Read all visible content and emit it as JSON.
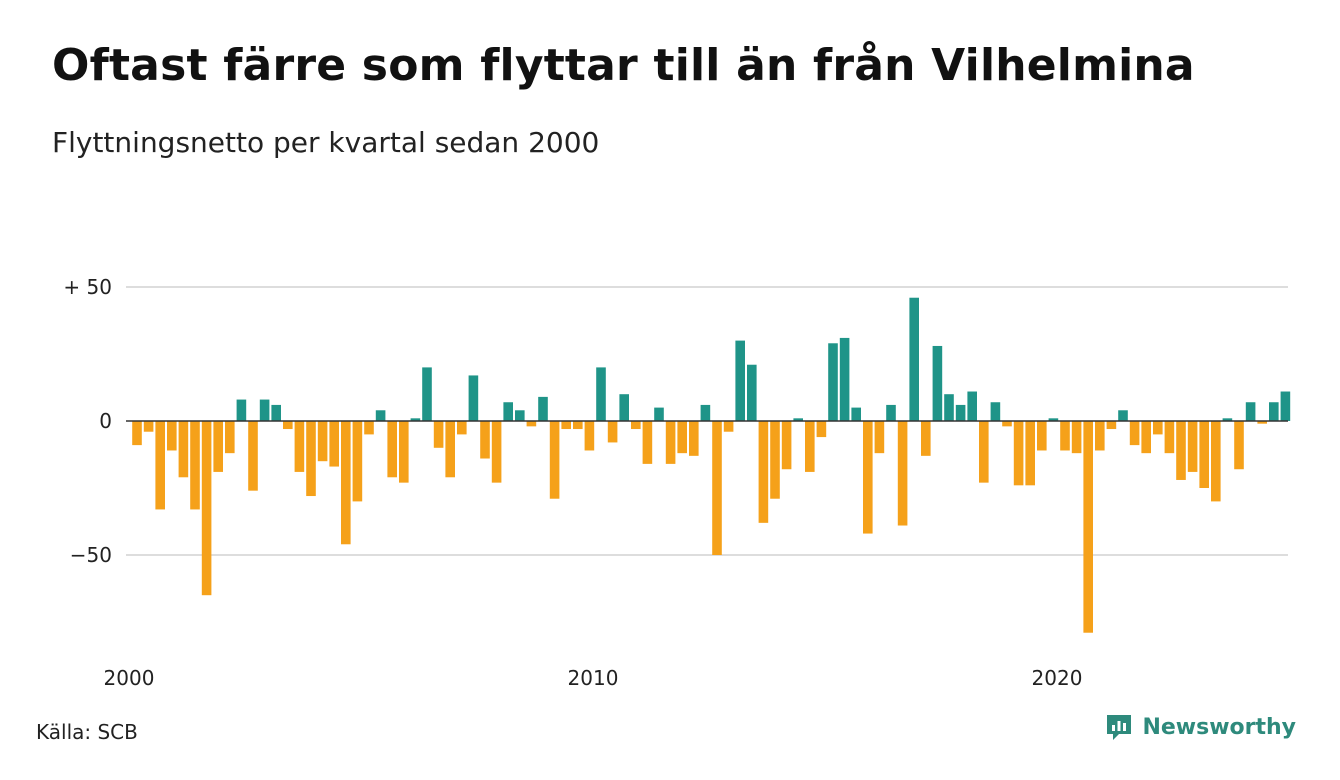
{
  "title": "Oftast färre som flyttar till än från Vilhelmina",
  "subtitle": "Flyttningsnetto per kvartal sedan 2000",
  "source": "Källa: SCB",
  "brand": "Newsworthy",
  "colors": {
    "positive": "#1f9488",
    "negative": "#f5a11a",
    "grid": "#dddddd",
    "zero": "#333333",
    "brand": "#2e8a7c"
  },
  "chart_data": {
    "type": "bar",
    "x_start": "2000-Q1",
    "x_step": "quarter",
    "ylim": [
      -80,
      50
    ],
    "yticks": [
      50,
      0,
      -50
    ],
    "ytick_labels": [
      "+ 50",
      "0",
      "−50"
    ],
    "xticks": [
      {
        "index": 0,
        "label": "2000"
      },
      {
        "index": 40,
        "label": "2010"
      },
      {
        "index": 80,
        "label": "2020"
      }
    ],
    "values": [
      -9,
      -4,
      -33,
      -11,
      -21,
      -33,
      -65,
      -19,
      -12,
      8,
      -26,
      8,
      6,
      -3,
      -19,
      -28,
      -15,
      -17,
      -46,
      -30,
      -5,
      4,
      -21,
      -23,
      1,
      20,
      -10,
      -21,
      -5,
      17,
      -14,
      -23,
      7,
      4,
      -2,
      9,
      -29,
      -3,
      -3,
      -11,
      20,
      -8,
      10,
      -3,
      -16,
      5,
      -16,
      -12,
      -13,
      6,
      -50,
      -4,
      30,
      21,
      -38,
      -29,
      -18,
      1,
      -19,
      -6,
      29,
      31,
      5,
      -42,
      -12,
      6,
      -39,
      46,
      -13,
      28,
      10,
      6,
      11,
      -23,
      7,
      -2,
      -24,
      -24,
      -11,
      1,
      -11,
      -12,
      -79,
      -11,
      -3,
      4,
      -9,
      -12,
      -5,
      -12,
      -22,
      -19,
      -25,
      -30,
      1,
      -18,
      7,
      -1,
      7,
      11
    ]
  }
}
